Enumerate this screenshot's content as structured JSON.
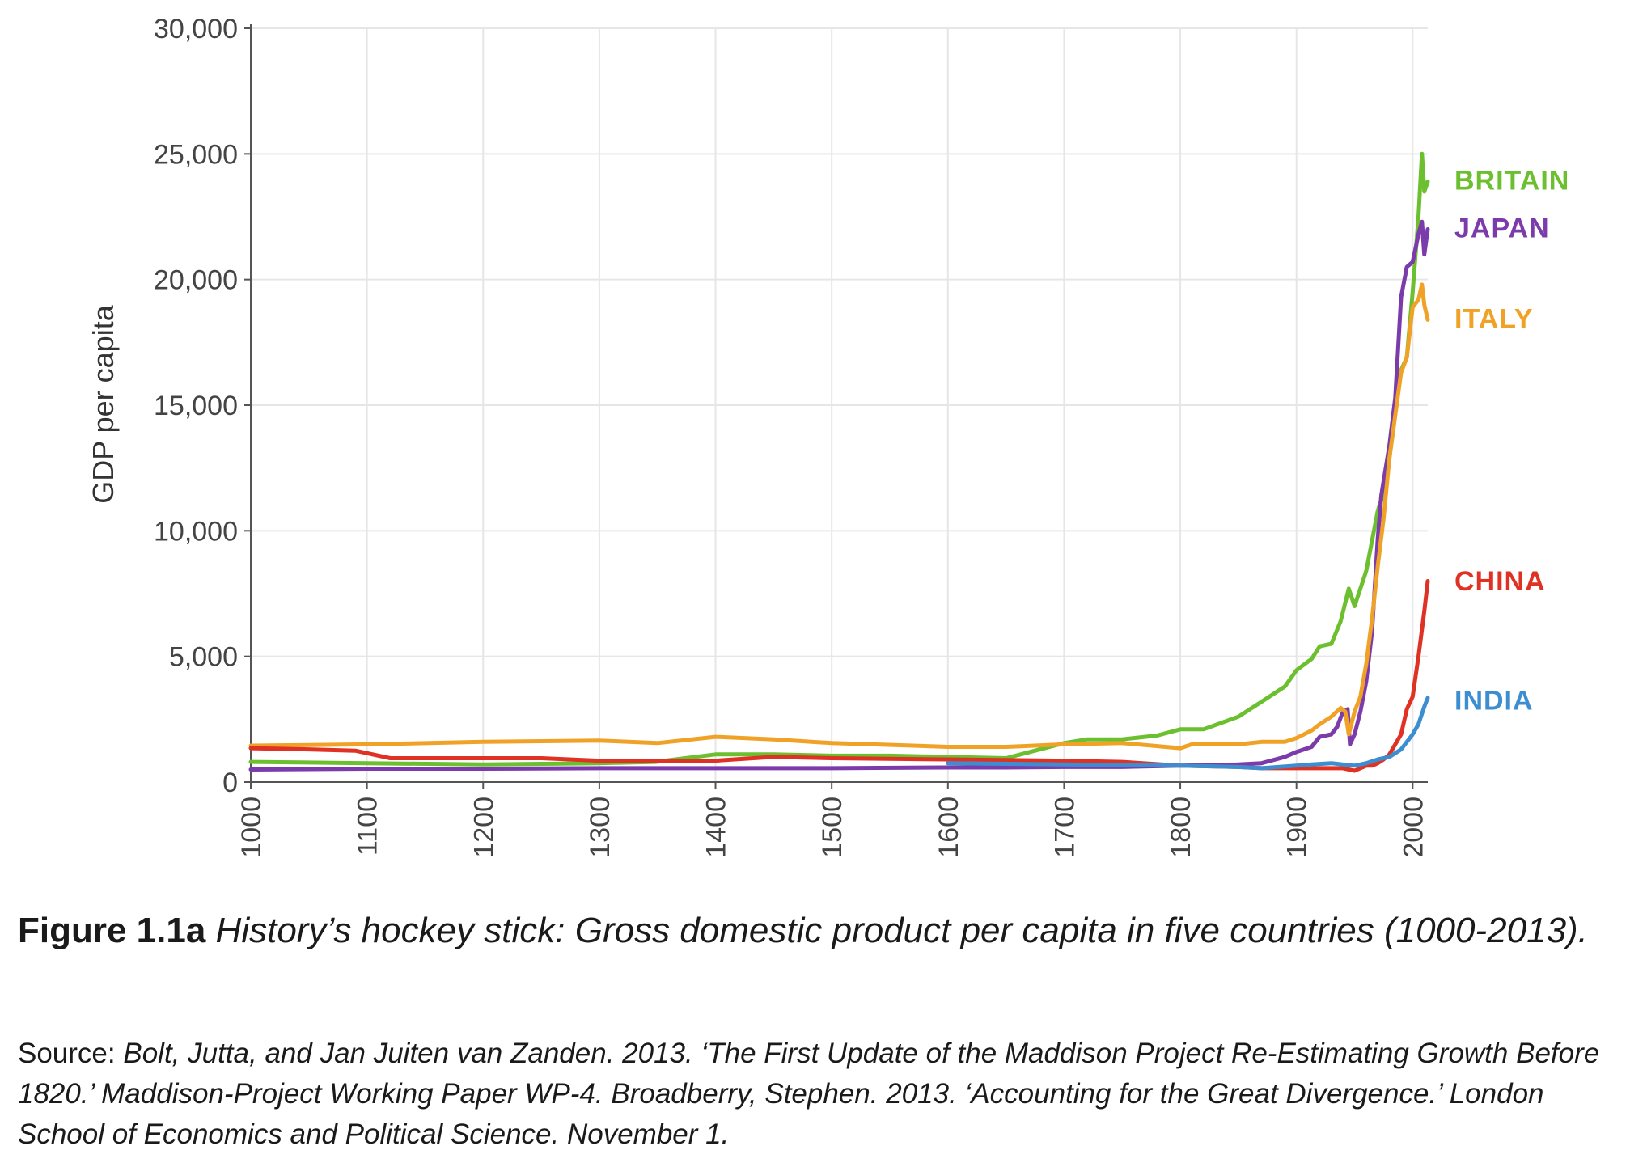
{
  "caption": {
    "figure_label": "Figure 1.1a",
    "title": "History’s hockey stick: Gross domestic product per capita in five countries (1000-2013)."
  },
  "source": {
    "label": "Source:",
    "citation": "Bolt, Jutta, and Jan Juiten van Zanden. 2013. ‘The First Update of the Maddison Project Re-Estimating Growth Before 1820.’ Maddison-Project Working Paper WP-4. Broadberry, Stephen. 2013. ‘Accounting for the Great Divergence.’ London School of Economics and Political Science. November 1."
  },
  "chart_data": {
    "type": "line",
    "title": "",
    "xlabel": "",
    "ylabel": "GDP per capita",
    "xlim": [
      1000,
      2013
    ],
    "ylim": [
      0,
      30000
    ],
    "xticks": [
      1000,
      1100,
      1200,
      1300,
      1400,
      1500,
      1600,
      1700,
      1800,
      1900,
      2000
    ],
    "xtick_labels": [
      "1000",
      "1100",
      "1200",
      "1300",
      "1400",
      "1500",
      "1600",
      "1700",
      "1800",
      "1900",
      "2000"
    ],
    "yticks": [
      0,
      5000,
      10000,
      15000,
      20000,
      25000,
      30000
    ],
    "ytick_labels": [
      "0",
      "5,000",
      "10,000",
      "15,000",
      "20,000",
      "25,000",
      "30,000"
    ],
    "grid": true,
    "legend": "end-of-line labels",
    "series": [
      {
        "name": "BRITAIN",
        "color": "#6cbf2e",
        "x": [
          1000,
          1100,
          1200,
          1300,
          1348,
          1400,
          1450,
          1500,
          1550,
          1600,
          1650,
          1700,
          1720,
          1750,
          1780,
          1800,
          1820,
          1850,
          1870,
          1890,
          1900,
          1913,
          1920,
          1930,
          1938,
          1945,
          1950,
          1960,
          1970,
          1975,
          1980,
          1990,
          1995,
          2000,
          2005,
          2008,
          2010,
          2013
        ],
        "values": [
          800,
          750,
          700,
          750,
          800,
          1100,
          1100,
          1050,
          1050,
          1000,
          950,
          1550,
          1700,
          1700,
          1850,
          2100,
          2100,
          2600,
          3200,
          3800,
          4450,
          4900,
          5400,
          5500,
          6400,
          7700,
          7000,
          8400,
          10800,
          11500,
          12900,
          16400,
          16900,
          19500,
          22500,
          25000,
          23500,
          23900
        ]
      },
      {
        "name": "JAPAN",
        "color": "#7b3bab",
        "x": [
          1000,
          1100,
          1200,
          1300,
          1400,
          1500,
          1600,
          1650,
          1700,
          1750,
          1800,
          1850,
          1870,
          1890,
          1900,
          1913,
          1920,
          1930,
          1935,
          1940,
          1944,
          1946,
          1950,
          1955,
          1960,
          1965,
          1970,
          1973,
          1980,
          1985,
          1990,
          1995,
          2000,
          2005,
          2008,
          2010,
          2013
        ],
        "values": [
          500,
          530,
          530,
          550,
          550,
          550,
          580,
          580,
          600,
          600,
          650,
          700,
          750,
          1000,
          1200,
          1400,
          1800,
          1900,
          2200,
          2800,
          2900,
          1500,
          1900,
          2800,
          4000,
          6000,
          9700,
          11400,
          13400,
          15300,
          19300,
          20500,
          20700,
          21800,
          22300,
          21000,
          22000
        ]
      },
      {
        "name": "ITALY",
        "color": "#f0a226",
        "x": [
          1000,
          1100,
          1200,
          1300,
          1350,
          1400,
          1450,
          1500,
          1570,
          1600,
          1650,
          1700,
          1750,
          1800,
          1810,
          1850,
          1870,
          1890,
          1900,
          1913,
          1920,
          1930,
          1938,
          1942,
          1945,
          1950,
          1955,
          1960,
          1965,
          1970,
          1975,
          1980,
          1990,
          1995,
          2000,
          2005,
          2008,
          2010,
          2013
        ],
        "values": [
          1450,
          1500,
          1600,
          1650,
          1550,
          1800,
          1700,
          1550,
          1450,
          1400,
          1400,
          1500,
          1550,
          1350,
          1500,
          1500,
          1600,
          1600,
          1750,
          2050,
          2300,
          2600,
          2950,
          2800,
          1900,
          2800,
          3400,
          4700,
          6500,
          8600,
          10500,
          12900,
          16300,
          16900,
          18900,
          19200,
          19800,
          19000,
          18400
        ]
      },
      {
        "name": "CHINA",
        "color": "#e03224",
        "x": [
          1000,
          1050,
          1090,
          1120,
          1200,
          1250,
          1300,
          1400,
          1450,
          1500,
          1600,
          1700,
          1750,
          1800,
          1850,
          1870,
          1900,
          1913,
          1930,
          1940,
          1950,
          1960,
          1965,
          1970,
          1975,
          1980,
          1985,
          1990,
          1995,
          2000,
          2005,
          2010,
          2013
        ],
        "values": [
          1350,
          1300,
          1250,
          950,
          950,
          950,
          850,
          850,
          1000,
          950,
          900,
          850,
          800,
          650,
          600,
          550,
          550,
          550,
          550,
          550,
          450,
          650,
          650,
          750,
          900,
          1100,
          1500,
          1900,
          2900,
          3400,
          5000,
          6800,
          8000
        ]
      },
      {
        "name": "INDIA",
        "color": "#3d8ed0",
        "x": [
          1600,
          1700,
          1800,
          1850,
          1870,
          1900,
          1913,
          1930,
          1940,
          1950,
          1960,
          1970,
          1980,
          1990,
          2000,
          2005,
          2010,
          2013
        ],
        "values": [
          750,
          700,
          650,
          600,
          550,
          650,
          700,
          750,
          700,
          650,
          750,
          900,
          1000,
          1300,
          1900,
          2300,
          3000,
          3350
        ]
      }
    ]
  }
}
